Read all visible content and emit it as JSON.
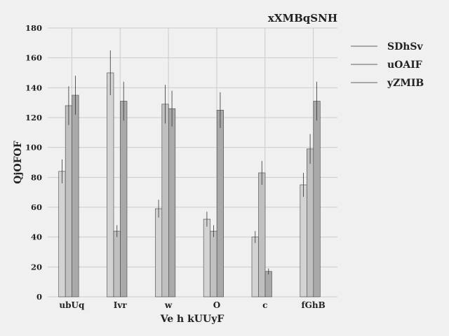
{
  "chart_data": {
    "type": "bar",
    "title": "xXMBqSNH",
    "xlabel": "Ve h kUUyF",
    "ylabel": "QjOFOF",
    "categories": [
      "ubUq",
      "Ivr",
      "w",
      "O",
      "c",
      "fGhB"
    ],
    "ylim": [
      0,
      180
    ],
    "yticks": [
      0,
      20,
      40,
      60,
      80,
      100,
      120,
      140,
      160,
      180
    ],
    "grid": true,
    "legend_position": "right, upper",
    "series": [
      {
        "name": "SDhSv",
        "color": "#d3d3d3",
        "values": [
          84,
          150,
          59,
          52,
          40,
          75
        ],
        "errors": [
          8,
          15,
          6,
          5,
          4,
          8
        ]
      },
      {
        "name": "uOAIF",
        "color": "#c0c0c0",
        "values": [
          128,
          44,
          129,
          44,
          83,
          99
        ],
        "errors": [
          13,
          4,
          13,
          4,
          8,
          10
        ]
      },
      {
        "name": "yZMIB",
        "color": "#a9a9a9",
        "values": [
          135,
          131,
          126,
          125,
          17,
          131
        ],
        "errors": [
          13,
          13,
          12,
          12,
          2,
          13
        ]
      }
    ]
  }
}
